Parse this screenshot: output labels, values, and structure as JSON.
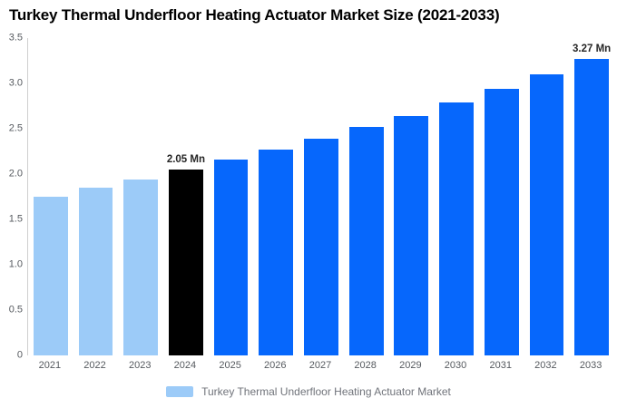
{
  "chart_data": {
    "type": "bar",
    "title": "Turkey Thermal Underfloor Heating Actuator Market Size (2021-2033)",
    "xlabel": "",
    "ylabel": "",
    "unit": "Mn",
    "ylim": [
      0,
      3.5
    ],
    "grid": false,
    "legend_position": "bottom",
    "categories": [
      "2021",
      "2022",
      "2023",
      "2024",
      "2025",
      "2026",
      "2027",
      "2028",
      "2029",
      "2030",
      "2031",
      "2032",
      "2033"
    ],
    "values": [
      1.75,
      1.85,
      1.94,
      2.05,
      2.16,
      2.27,
      2.39,
      2.52,
      2.64,
      2.79,
      2.94,
      3.1,
      3.27
    ],
    "point_roles": [
      "historical",
      "historical",
      "historical",
      "current",
      "forecast",
      "forecast",
      "forecast",
      "forecast",
      "forecast",
      "forecast",
      "forecast",
      "forecast",
      "forecast"
    ],
    "data_labels": [
      "",
      "",
      "",
      "2.05 Mn",
      "",
      "",
      "",
      "",
      "",
      "",
      "",
      "",
      "3.27 Mn"
    ],
    "yticks": [
      {
        "value": 0,
        "label": "0"
      },
      {
        "value": 0.5,
        "label": "0.5"
      },
      {
        "value": 1.0,
        "label": "1.0"
      },
      {
        "value": 1.5,
        "label": "1.5"
      },
      {
        "value": 2.0,
        "label": "2.0"
      },
      {
        "value": 2.5,
        "label": "2.5"
      },
      {
        "value": 3.0,
        "label": "3.0"
      },
      {
        "value": 3.5,
        "label": "3.5"
      }
    ]
  },
  "legend": {
    "label": "Turkey Thermal Underfloor Heating Actuator Market"
  },
  "colors": {
    "historical": "#9CCBF8",
    "current": "#000000",
    "forecast": "#0667FC",
    "axis_line": "#CFCFCF",
    "tick_text": "#565A5F",
    "value_label_text": "#262626",
    "legend_text": "#70737A",
    "legend_swatch": "#9CCBF8",
    "background": "#FFFFFF"
  }
}
